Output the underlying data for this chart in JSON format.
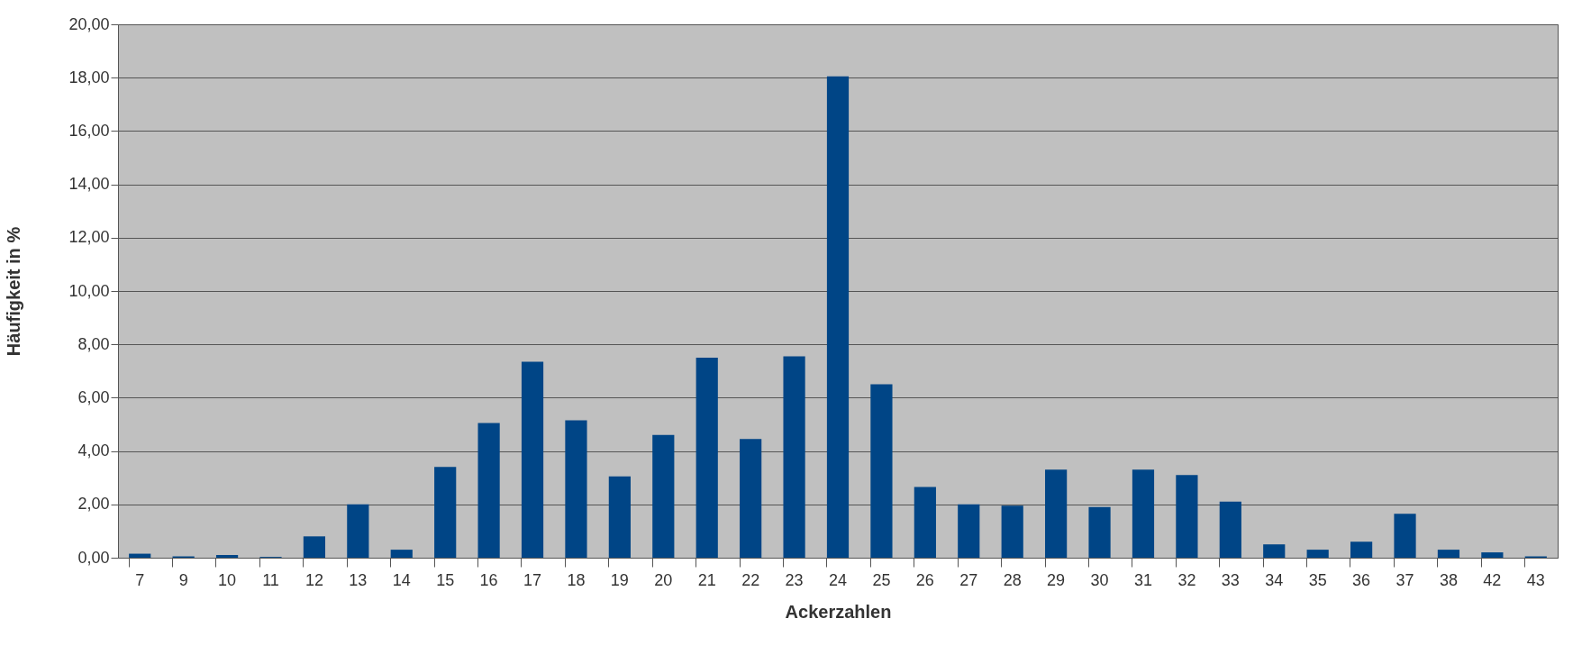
{
  "chart_data": {
    "type": "bar",
    "xlabel": "Ackerzahlen",
    "ylabel": "Häufigkeit in %",
    "categories": [
      "7",
      "9",
      "10",
      "11",
      "12",
      "13",
      "14",
      "15",
      "16",
      "17",
      "18",
      "19",
      "20",
      "21",
      "22",
      "23",
      "24",
      "25",
      "26",
      "27",
      "28",
      "29",
      "30",
      "31",
      "32",
      "33",
      "34",
      "35",
      "36",
      "37",
      "38",
      "42",
      "43"
    ],
    "values": [
      0.15,
      0.05,
      0.1,
      0.03,
      0.8,
      2.0,
      0.3,
      3.4,
      5.05,
      7.35,
      5.15,
      3.05,
      4.6,
      7.5,
      4.45,
      7.55,
      18.05,
      6.5,
      2.65,
      2.0,
      1.95,
      3.3,
      1.9,
      3.3,
      3.1,
      2.1,
      0.5,
      0.3,
      0.6,
      1.65,
      0.3,
      0.2,
      0.05
    ],
    "color": "#004586",
    "ylim": [
      0,
      20
    ],
    "yticks": [
      {
        "value": 0,
        "label": "0,00"
      },
      {
        "value": 2,
        "label": "2,00"
      },
      {
        "value": 4,
        "label": "4,00"
      },
      {
        "value": 6,
        "label": "6,00"
      },
      {
        "value": 8,
        "label": "8,00"
      },
      {
        "value": 10,
        "label": "10,00"
      },
      {
        "value": 12,
        "label": "12,00"
      },
      {
        "value": 14,
        "label": "14,00"
      },
      {
        "value": 16,
        "label": "16,00"
      },
      {
        "value": 18,
        "label": "18,00"
      },
      {
        "value": 20,
        "label": "20,00"
      }
    ],
    "grid": "y"
  }
}
